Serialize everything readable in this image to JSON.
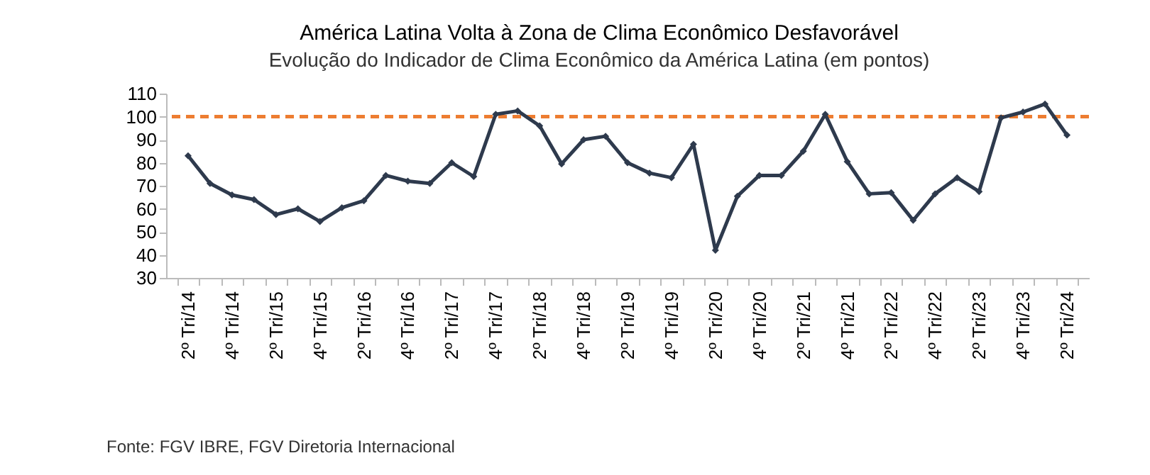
{
  "chart_data": {
    "type": "line",
    "title": "América Latina Volta à Zona de Clima Econômico Desfavorável",
    "subtitle": "Evolução do Indicador de Clima Econômico da América Latina (em pontos)",
    "categories": [
      "2º Tri/14",
      null,
      "4º Tri/14",
      null,
      "2º Tri/15",
      null,
      "4º Tri/15",
      null,
      "2º Tri/16",
      null,
      "4º Tri/16",
      null,
      "2º Tri/17",
      null,
      "4º Tri/17",
      null,
      "2º Tri/18",
      null,
      "4º Tri/18",
      null,
      "2º Tri/19",
      null,
      "4º Tri/19",
      null,
      "2º Tri/20",
      null,
      "4º Tri/20",
      null,
      "2º Tri/21",
      null,
      "4º Tri/21",
      null,
      "2º Tri/22",
      null,
      "4º Tri/22",
      null,
      "2º Tri/23",
      null,
      "4º Tri/23",
      null,
      "2º Tri/24"
    ],
    "series": [
      {
        "color": "#2e3a4d",
        "values": [
          83,
          71,
          66,
          64,
          57.5,
          60,
          54.5,
          60.5,
          63.5,
          74.5,
          72,
          71,
          80,
          74,
          101,
          102.5,
          96,
          79.5,
          90,
          91.5,
          80,
          75.5,
          73.5,
          88,
          42,
          65.5,
          74.5,
          74.5,
          85,
          101,
          80.5,
          66.5,
          67,
          55,
          66.5,
          73.5,
          67.5,
          99.5,
          102,
          105.5,
          92
        ]
      }
    ],
    "ylim": [
      30,
      110
    ],
    "yticks": [
      30,
      40,
      50,
      60,
      70,
      80,
      90,
      100,
      110
    ],
    "ref_lines": [
      {
        "axis": "y",
        "value": 100,
        "color": "#ed7d31",
        "line_style": "dashed"
      }
    ],
    "annotations": [
      "Fonte: FGV IBRE, FGV Diretoria Internacional"
    ],
    "marker": "diamond",
    "line_style": "solid",
    "grid": false,
    "legend": false
  }
}
